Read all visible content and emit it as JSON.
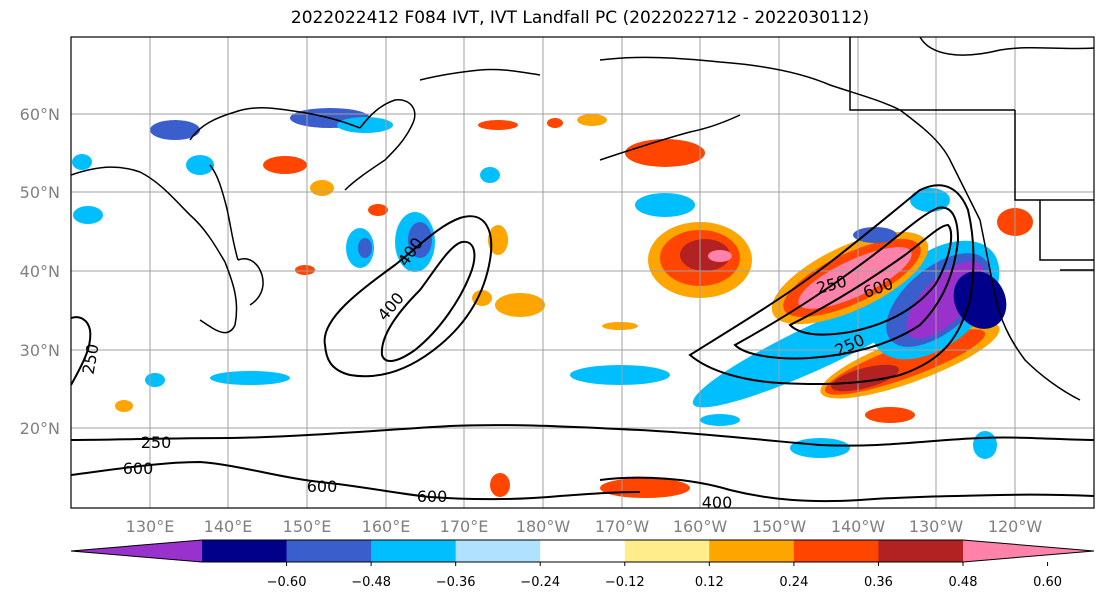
{
  "title": "2022022412 F084 IVT, IVT Landfall PC (2022022712 - 2022030112)",
  "lat_labels": [
    "60°N",
    "50°N",
    "40°N",
    "30°N",
    "20°N"
  ],
  "lon_labels": [
    "130°E",
    "140°E",
    "150°E",
    "160°E",
    "170°E",
    "180°W",
    "170°W",
    "160°W",
    "150°W",
    "140°W",
    "130°W",
    "120°W"
  ],
  "contour_labels": [
    "250",
    "400",
    "400",
    "600",
    "250",
    "250",
    "250",
    "600",
    "600",
    "600",
    "400"
  ],
  "colorbar": {
    "colors": [
      "#9932cc",
      "#00008b",
      "#3a5fcd",
      "#00bfff",
      "#b0e2ff",
      "#ffffff",
      "#ffec8b",
      "#ffa500",
      "#ff4500",
      "#b22222",
      "#ff82ab"
    ],
    "tick_labels": [
      "−0.60",
      "−0.48",
      "−0.36",
      "−0.24",
      "−0.12",
      "0.12",
      "0.24",
      "0.36",
      "0.48",
      "0.60"
    ]
  }
}
